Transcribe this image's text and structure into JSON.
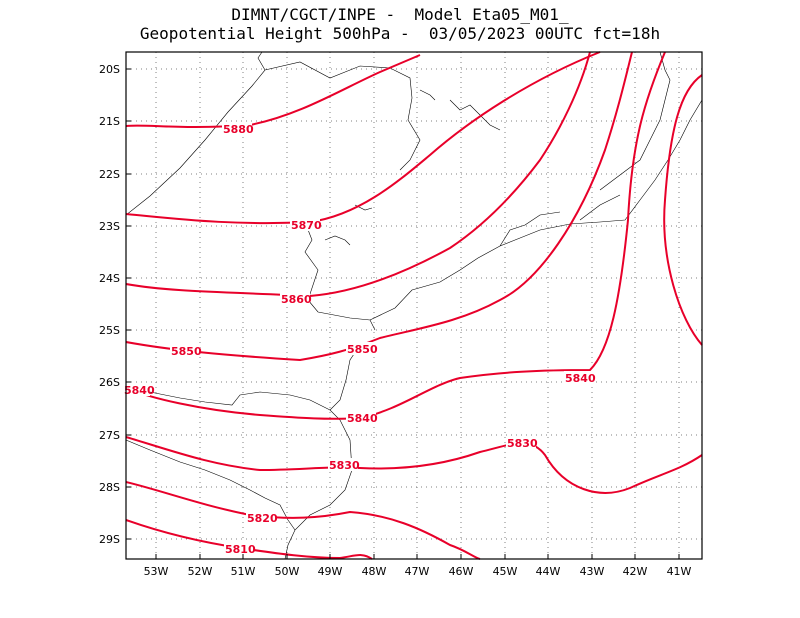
{
  "title": {
    "line1": "DIMNT/CGCT/INPE -  Model Eta05_M01_",
    "line2": "Geopotential Height 500hPa -  03/05/2023 00UTC fct=18h"
  },
  "colors": {
    "contour": "#e8002a",
    "coast": "#000000",
    "grid": "#808080"
  },
  "map": {
    "lat_labels": [
      "20S",
      "21S",
      "22S",
      "23S",
      "24S",
      "25S",
      "26S",
      "27S",
      "28S",
      "29S"
    ],
    "lon_labels": [
      "53W",
      "52W",
      "51W",
      "50W",
      "49W",
      "48W",
      "47W",
      "46W",
      "45W",
      "44W",
      "43W",
      "42W",
      "41W"
    ],
    "contour_labels": [
      "5880",
      "5870",
      "5860",
      "5850",
      "5850",
      "5840",
      "5840",
      "5840",
      "5830",
      "5830",
      "5820",
      "5810"
    ]
  }
}
